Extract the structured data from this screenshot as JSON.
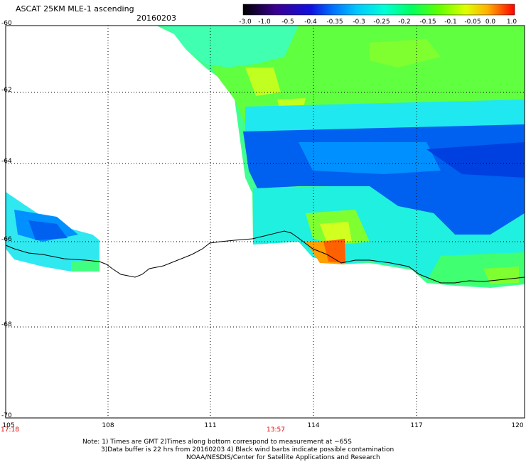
{
  "title": "ASCAT 25KM MLE-1 ascending",
  "date": "20160203",
  "colorbar": {
    "ticks": [
      "-3.0",
      "-1.0",
      "-0.5",
      "-0.4",
      "-0.35",
      "-0.3",
      "-0.25",
      "-0.2",
      "-0.15",
      "-0.1",
      "-0.05",
      "0.0",
      "1.0"
    ],
    "colors": [
      "#2a0030",
      "#3a0080",
      "#2020d0",
      "#0040ff",
      "#0090ff",
      "#00d0ff",
      "#00ffd0",
      "#00ff60",
      "#60ff00",
      "#c0ff00",
      "#ffd000",
      "#ff6000",
      "#ff0000"
    ]
  },
  "axes": {
    "x_ticks": [
      "105",
      "108",
      "111",
      "114",
      "117",
      "120"
    ],
    "y_ticks": [
      "-60",
      "-62",
      "-64",
      "-66",
      "-68",
      "-70"
    ]
  },
  "times": [
    {
      "label": "17:18"
    },
    {
      "label": "13:57"
    }
  ],
  "notes": [
    "Note: 1) Times are GMT 2)Times along bottom correspond to measurement at −65S",
    "3)Data buffer is 22 hrs from 20160203 4) Black wind barbs indicate possible contamination",
    "NOAA/NESDIS/Center for Satellite Applications and Research"
  ]
}
